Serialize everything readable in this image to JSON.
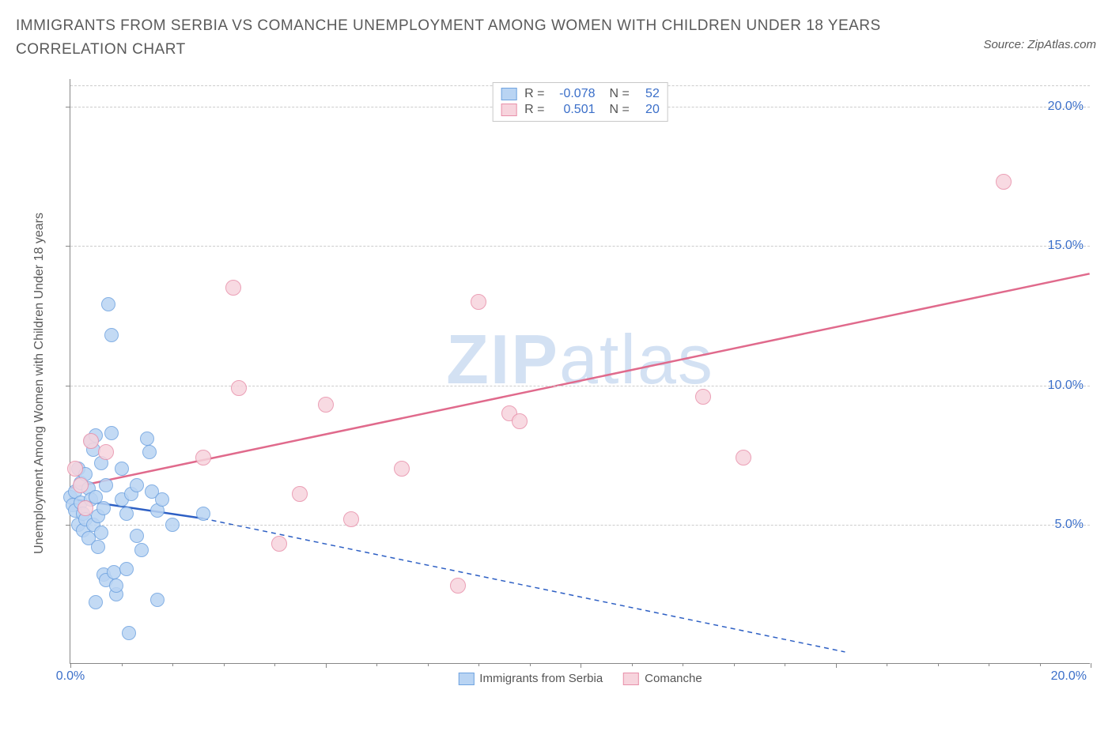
{
  "header": {
    "title": "IMMIGRANTS FROM SERBIA VS COMANCHE UNEMPLOYMENT AMONG WOMEN WITH CHILDREN UNDER 18 YEARS CORRELATION CHART",
    "source": "Source: ZipAtlas.com"
  },
  "watermark": {
    "zip": "ZIP",
    "atlas": "atlas"
  },
  "chart": {
    "type": "scatter",
    "y_axis_label": "Unemployment Among Women with Children Under 18 years",
    "xlim": [
      0,
      20
    ],
    "ylim": [
      0,
      21
    ],
    "x_ticks": [
      0,
      5,
      10,
      15,
      20
    ],
    "y_ticks": [
      5,
      10,
      15,
      20
    ],
    "x_tick_labels": [
      "0.0%",
      "",
      "",
      "",
      "20.0%"
    ],
    "y_tick_labels": [
      "5.0%",
      "10.0%",
      "15.0%",
      "20.0%"
    ],
    "grid_color": "#cccccc",
    "axis_color": "#888888",
    "background_color": "#ffffff",
    "tick_label_color": "#3b6fc9",
    "series": [
      {
        "name": "Immigrants from Serbia",
        "fill": "#b9d4f3",
        "stroke": "#6fa3e0",
        "marker_size": 18,
        "r_value": "-0.078",
        "n_value": "52",
        "trend": {
          "solid": {
            "x1": 0,
            "y1": 5.9,
            "x2": 2.6,
            "y2": 5.2
          },
          "dashed": {
            "x1": 2.6,
            "y1": 5.2,
            "x2": 15.2,
            "y2": 0.4
          },
          "color": "#2d5fc4",
          "width": 2.5
        },
        "points": [
          [
            0.0,
            6.0
          ],
          [
            0.05,
            5.7
          ],
          [
            0.1,
            6.2
          ],
          [
            0.1,
            5.5
          ],
          [
            0.15,
            5.0
          ],
          [
            0.15,
            7.0
          ],
          [
            0.2,
            6.5
          ],
          [
            0.2,
            5.8
          ],
          [
            0.25,
            4.8
          ],
          [
            0.25,
            5.4
          ],
          [
            0.3,
            6.8
          ],
          [
            0.3,
            5.2
          ],
          [
            0.35,
            6.3
          ],
          [
            0.35,
            4.5
          ],
          [
            0.4,
            8.0
          ],
          [
            0.4,
            5.9
          ],
          [
            0.45,
            5.0
          ],
          [
            0.45,
            7.7
          ],
          [
            0.5,
            8.2
          ],
          [
            0.5,
            6.0
          ],
          [
            0.55,
            5.3
          ],
          [
            0.55,
            4.2
          ],
          [
            0.6,
            7.2
          ],
          [
            0.6,
            4.7
          ],
          [
            0.65,
            3.2
          ],
          [
            0.65,
            5.6
          ],
          [
            0.7,
            3.0
          ],
          [
            0.7,
            6.4
          ],
          [
            0.75,
            12.9
          ],
          [
            0.8,
            11.8
          ],
          [
            0.8,
            8.3
          ],
          [
            0.85,
            3.3
          ],
          [
            0.9,
            2.5
          ],
          [
            0.9,
            2.8
          ],
          [
            1.0,
            5.9
          ],
          [
            1.0,
            7.0
          ],
          [
            1.1,
            5.4
          ],
          [
            1.1,
            3.4
          ],
          [
            1.15,
            1.1
          ],
          [
            1.2,
            6.1
          ],
          [
            1.3,
            6.4
          ],
          [
            1.3,
            4.6
          ],
          [
            1.4,
            4.1
          ],
          [
            1.5,
            8.1
          ],
          [
            1.55,
            7.6
          ],
          [
            1.6,
            6.2
          ],
          [
            1.7,
            5.5
          ],
          [
            1.8,
            5.9
          ],
          [
            1.7,
            2.3
          ],
          [
            2.0,
            5.0
          ],
          [
            2.6,
            5.4
          ],
          [
            0.5,
            2.2
          ]
        ]
      },
      {
        "name": "Comanche",
        "fill": "#f7d4dd",
        "stroke": "#e890aa",
        "marker_size": 20,
        "r_value": "0.501",
        "n_value": "20",
        "trend": {
          "solid": {
            "x1": 0,
            "y1": 6.3,
            "x2": 20,
            "y2": 14.0
          },
          "color": "#e06a8c",
          "width": 2.5
        },
        "points": [
          [
            0.1,
            7.0
          ],
          [
            0.2,
            6.4
          ],
          [
            0.3,
            5.6
          ],
          [
            0.4,
            8.0
          ],
          [
            2.6,
            7.4
          ],
          [
            3.2,
            13.5
          ],
          [
            3.3,
            9.9
          ],
          [
            4.1,
            4.3
          ],
          [
            4.5,
            6.1
          ],
          [
            5.0,
            9.3
          ],
          [
            5.5,
            5.2
          ],
          [
            6.5,
            7.0
          ],
          [
            7.6,
            2.8
          ],
          [
            8.0,
            13.0
          ],
          [
            8.6,
            9.0
          ],
          [
            8.8,
            8.7
          ],
          [
            12.4,
            9.6
          ],
          [
            13.2,
            7.4
          ],
          [
            18.3,
            17.3
          ],
          [
            0.7,
            7.6
          ]
        ]
      }
    ],
    "legend_top": {
      "r_label": "R =",
      "n_label": "N ="
    },
    "legend_bottom_labels": [
      "Immigrants from Serbia",
      "Comanche"
    ]
  }
}
